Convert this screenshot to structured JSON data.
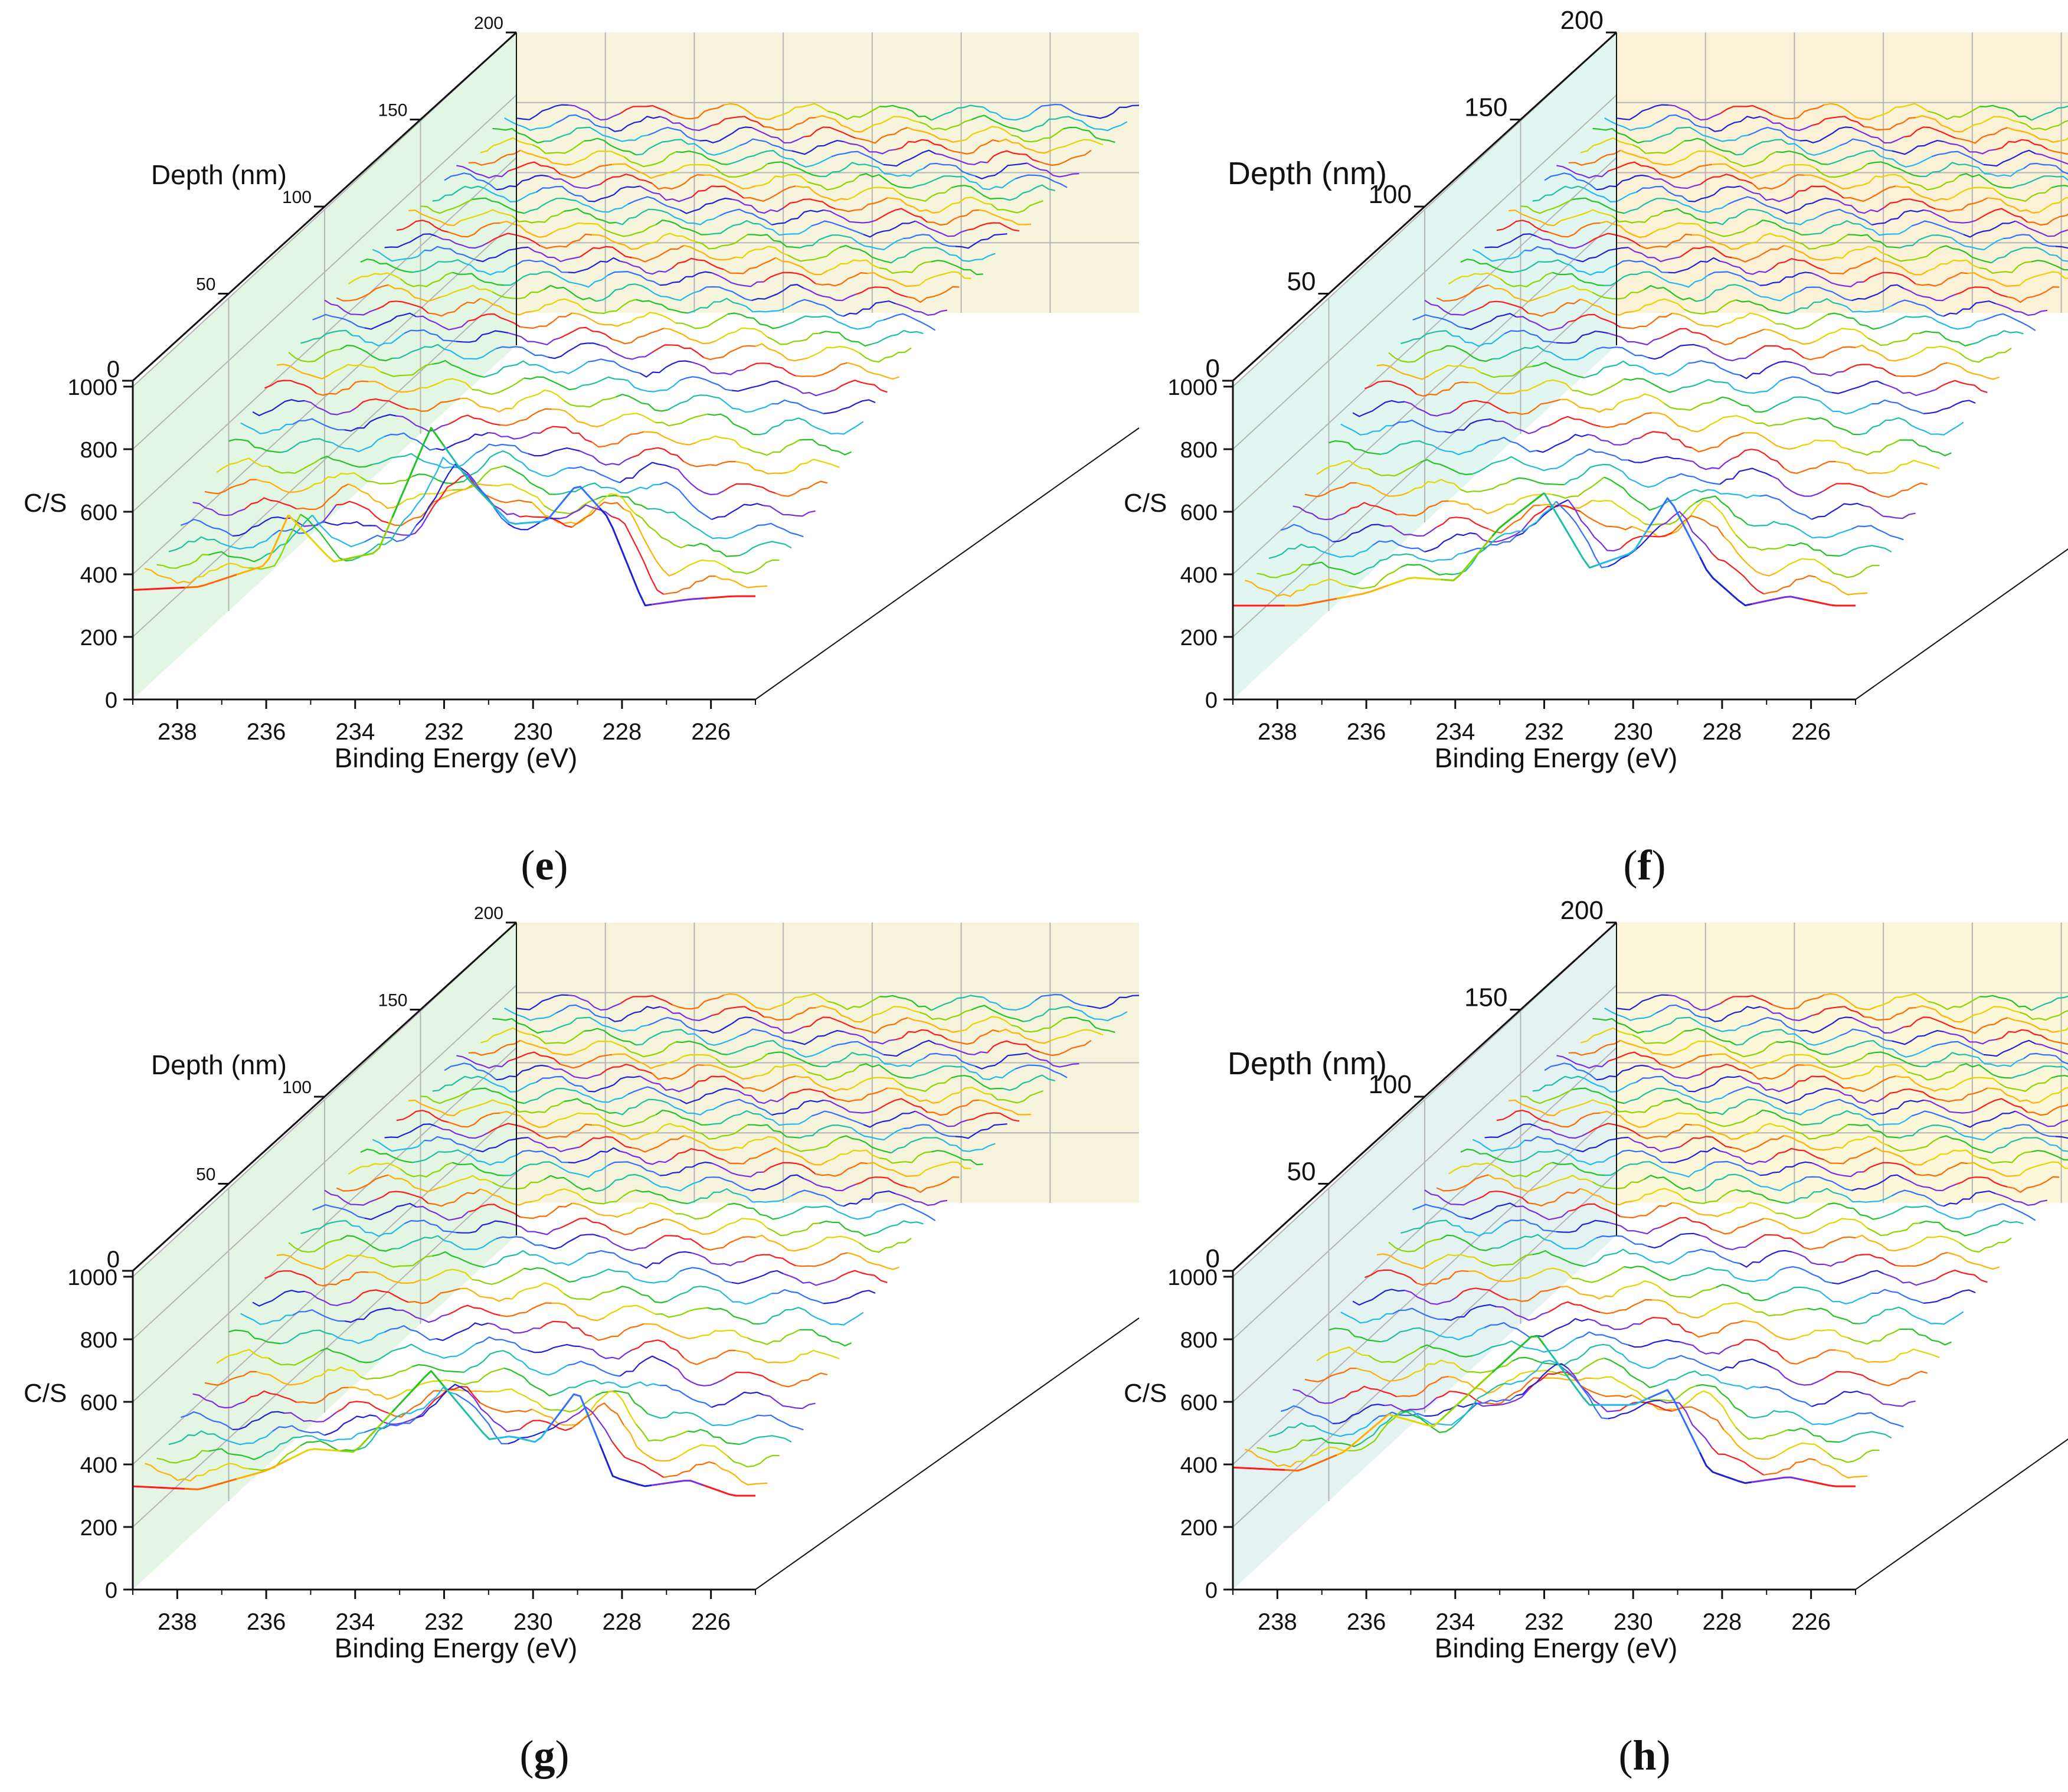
{
  "figure": {
    "panels": [
      {
        "label": "e",
        "wall_color": "#e3f6e3",
        "back_color": "#f6f4dc",
        "small_depth_ticks": true
      },
      {
        "label": "f",
        "wall_color": "#e2f6f1",
        "back_color": "#fbf1d7",
        "small_depth_ticks": false
      },
      {
        "label": "g",
        "wall_color": "#e4f5e3",
        "back_color": "#f6f3dc",
        "small_depth_ticks": true
      },
      {
        "label": "h",
        "wall_color": "#e4f2f2",
        "back_color": "#fdf7d9",
        "small_depth_ticks": false
      }
    ]
  },
  "chart_data": [
    {
      "type": "line",
      "panel": "e",
      "xlabel": "Binding Energy (eV)",
      "ylabel": "C/S",
      "zlabel": "Depth (nm)",
      "xlim": [
        239,
        225
      ],
      "ylim": [
        0,
        1000
      ],
      "zlim": [
        0,
        200
      ],
      "xticks": [
        238,
        236,
        234,
        232,
        230,
        228,
        226
      ],
      "yticks": [
        0,
        200,
        400,
        600,
        800,
        1000
      ],
      "zticks": [
        0,
        50,
        100,
        150,
        200
      ],
      "spectra_count": 33,
      "surface_spectrum": {
        "x": [
          239,
          237.5,
          236,
          235.5,
          234.5,
          233.5,
          232.3,
          231.5,
          230.5,
          229.7,
          229,
          228.3,
          227.5,
          226.5,
          225.5
        ],
        "y": [
          350,
          360,
          430,
          590,
          440,
          470,
          870,
          710,
          560,
          570,
          690,
          580,
          300,
          320,
          330
        ]
      },
      "surface_peaks": [
        {
          "x": 235.5,
          "y": 590
        },
        {
          "x": 232.3,
          "y": 870
        },
        {
          "x": 229,
          "y": 690
        }
      ]
    },
    {
      "type": "line",
      "panel": "f",
      "xlabel": "Binding Energy (eV)",
      "ylabel": "C/S",
      "zlabel": "Depth (nm)",
      "xlim": [
        239,
        225
      ],
      "ylim": [
        0,
        1000
      ],
      "zlim": [
        0,
        200
      ],
      "xticks": [
        238,
        236,
        234,
        232,
        230,
        228,
        226
      ],
      "yticks": [
        0,
        200,
        400,
        600,
        800,
        1000
      ],
      "zticks": [
        0,
        50,
        100,
        150,
        200
      ],
      "spectra_count": 33,
      "surface_spectrum": {
        "x": [
          239,
          237.5,
          236,
          235,
          234,
          233,
          232,
          231,
          230,
          229.2,
          228.3,
          227.5,
          226.5,
          225.5
        ],
        "y": [
          300,
          300,
          340,
          390,
          380,
          550,
          660,
          420,
          470,
          650,
          400,
          300,
          330,
          300
        ]
      },
      "surface_peaks": [
        {
          "x": 232,
          "y": 660
        },
        {
          "x": 229.2,
          "y": 650
        }
      ]
    },
    {
      "type": "line",
      "panel": "g",
      "xlabel": "Binding Energy (eV)",
      "ylabel": "C/S",
      "zlabel": "Depth (nm)",
      "xlim": [
        239,
        225
      ],
      "ylim": [
        0,
        1000
      ],
      "zlim": [
        0,
        200
      ],
      "xticks": [
        238,
        236,
        234,
        232,
        230,
        228,
        226
      ],
      "yticks": [
        0,
        200,
        400,
        600,
        800,
        1000
      ],
      "zticks": [
        0,
        50,
        100,
        150,
        200
      ],
      "spectra_count": 33,
      "surface_spectrum": {
        "x": [
          239,
          237.5,
          236,
          235,
          234,
          232.3,
          231,
          230.5,
          229.9,
          229,
          228.2,
          227.5,
          226.5,
          225.5
        ],
        "y": [
          330,
          320,
          380,
          450,
          440,
          700,
          480,
          490,
          470,
          640,
          360,
          330,
          350,
          300
        ]
      },
      "surface_peaks": [
        {
          "x": 232.3,
          "y": 700
        },
        {
          "x": 229,
          "y": 640
        }
      ]
    },
    {
      "type": "line",
      "panel": "h",
      "xlabel": "Binding Energy (eV)",
      "ylabel": "C/S",
      "zlabel": "Depth (nm)",
      "xlim": [
        239,
        225
      ],
      "ylim": [
        0,
        1000
      ],
      "zlim": [
        0,
        200
      ],
      "xticks": [
        238,
        236,
        234,
        232,
        230,
        228,
        226
      ],
      "yticks": [
        0,
        200,
        400,
        600,
        800,
        1000
      ],
      "zticks": [
        0,
        50,
        100,
        150,
        200
      ],
      "spectra_count": 33,
      "surface_spectrum": {
        "x": [
          239,
          237.5,
          236.5,
          235.5,
          234.5,
          232.2,
          231,
          230,
          229.2,
          228.3,
          227.5,
          226.5,
          225.5
        ],
        "y": [
          390,
          380,
          440,
          560,
          520,
          820,
          590,
          590,
          640,
          380,
          340,
          360,
          330
        ]
      },
      "surface_peaks": [
        {
          "x": 232.2,
          "y": 820
        },
        {
          "x": 229.2,
          "y": 640
        }
      ]
    }
  ]
}
